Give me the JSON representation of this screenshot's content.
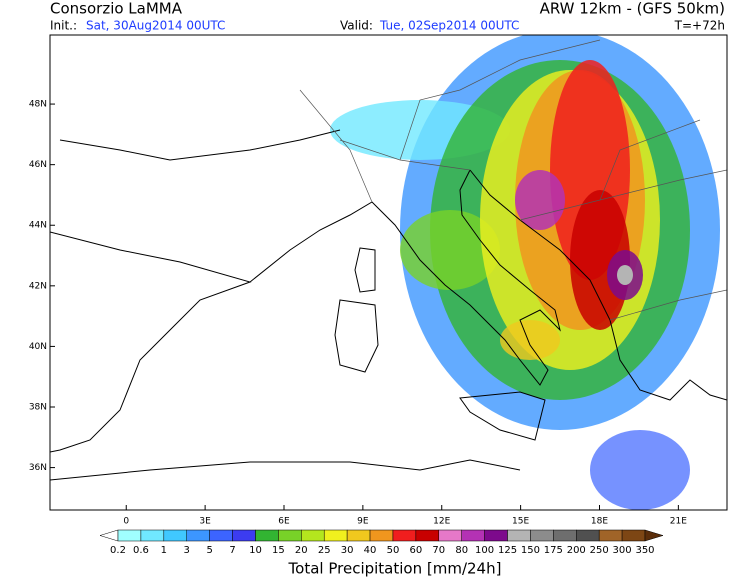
{
  "header": {
    "title": "Consorzio LaMMA",
    "model": "ARW 12km - (GFS 50km)",
    "init_label": "Init.:",
    "init": "Sat, 30Aug2014 00UTC",
    "valid_label": "Valid:",
    "valid": "Tue, 02Sep2014 00UTC",
    "lead": "T=+72h"
  },
  "map": {
    "lon_range": [
      -2.9,
      22.85
    ],
    "lat_range": [
      34.6,
      50.28
    ],
    "lon_ticks": [
      0,
      {
        "value": 3,
        "label": "3E"
      },
      {
        "value": 6,
        "label": "6E"
      },
      {
        "value": 9,
        "label": "9E"
      },
      {
        "value": 12,
        "label": "12E"
      },
      {
        "value": 15,
        "label": "15E"
      },
      {
        "value": 18,
        "label": "18E"
      },
      {
        "value": 21,
        "label": "21E"
      }
    ],
    "lat_ticks": [
      {
        "value": 48,
        "label": "48N"
      },
      {
        "value": 46,
        "label": "46N"
      },
      {
        "value": 44,
        "label": "44N"
      },
      {
        "value": 42,
        "label": "42N"
      },
      {
        "value": 40,
        "label": "40N"
      },
      {
        "value": 38,
        "label": "38N"
      },
      {
        "value": 36,
        "label": "36N"
      }
    ]
  },
  "colorbar": {
    "title": "Total Precipitation [mm/24h]",
    "levels": [
      0.2,
      0.6,
      1,
      3,
      5,
      7,
      10,
      15,
      20,
      25,
      30,
      40,
      50,
      60,
      70,
      80,
      100,
      125,
      150,
      175,
      200,
      250,
      300,
      350
    ],
    "colors": [
      "#ffffff",
      "#a0ffff",
      "#70e8ff",
      "#40c8ff",
      "#3c96ff",
      "#3c64ff",
      "#3c3cf0",
      "#32b432",
      "#78d228",
      "#b4e61e",
      "#f0f01e",
      "#f0c81e",
      "#f0961e",
      "#f01e1e",
      "#c80000",
      "#e678c8",
      "#b432b4",
      "#7d0a8c",
      "#b4b4b4",
      "#8c8c8c",
      "#6e6e6e",
      "#505050",
      "#a06428",
      "#7d4614",
      "#5a2d0a"
    ]
  }
}
